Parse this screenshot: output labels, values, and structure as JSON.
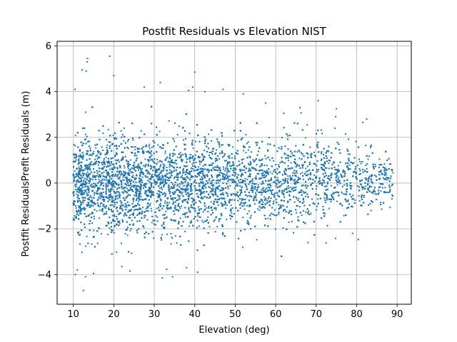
{
  "chart_data": {
    "type": "scatter",
    "title": "Postfit Residuals vs Elevation NIST",
    "xlabel": "Elevation (deg)",
    "ylabel": "Postfit ResidualsPrefit Residuals (m)",
    "xlim": [
      6,
      93.5
    ],
    "ylim": [
      -5.3,
      6.2
    ],
    "xticks": [
      10,
      20,
      30,
      40,
      50,
      60,
      70,
      80,
      90
    ],
    "yticks": [
      -4,
      -2,
      0,
      2,
      4,
      6
    ],
    "xtick_labels": [
      "10",
      "20",
      "30",
      "40",
      "50",
      "60",
      "70",
      "80",
      "90"
    ],
    "ytick_labels": [
      "−4",
      "−2",
      "0",
      "2",
      "4",
      "6"
    ],
    "grid": true,
    "marker_color": "#1f77b4",
    "elevation_range": [
      10,
      89
    ],
    "series": [
      {
        "points": [
          [
            13.5,
            5.45
          ],
          [
            13.4,
            5.3
          ],
          [
            19.0,
            5.55
          ],
          [
            40.0,
            4.85
          ],
          [
            12.2,
            4.95
          ],
          [
            13.2,
            4.9
          ],
          [
            10.4,
            4.1
          ],
          [
            20.0,
            4.7
          ],
          [
            27.5,
            4.2
          ],
          [
            31.5,
            4.4
          ],
          [
            38.5,
            4.05
          ],
          [
            42.5,
            4.0
          ],
          [
            47.0,
            4.1
          ],
          [
            52.0,
            3.9
          ],
          [
            39.5,
            4.2
          ],
          [
            11.0,
            -3.8
          ],
          [
            12.5,
            -4.7
          ],
          [
            13.0,
            -4.1
          ],
          [
            10.5,
            -4.0
          ],
          [
            24.0,
            -3.85
          ],
          [
            32.0,
            -4.15
          ],
          [
            34.5,
            -4.1
          ],
          [
            38.0,
            -3.7
          ],
          [
            15.0,
            -3.95
          ],
          [
            22.0,
            -3.65
          ],
          [
            62.0,
            3.05
          ],
          [
            70.5,
            3.6
          ],
          [
            75.0,
            3.25
          ],
          [
            81.5,
            2.65
          ],
          [
            82.5,
            2.8
          ],
          [
            66.0,
            3.3
          ],
          [
            57.5,
            3.5
          ],
          [
            89.0,
            0.45
          ],
          [
            88.5,
            0.3
          ],
          [
            86.0,
            -0.35
          ],
          [
            84.0,
            -0.45
          ],
          [
            87.5,
            1.0
          ],
          [
            88.0,
            -0.1
          ],
          [
            68.0,
            -2.6
          ],
          [
            79.0,
            -2.2
          ]
        ]
      }
    ]
  }
}
